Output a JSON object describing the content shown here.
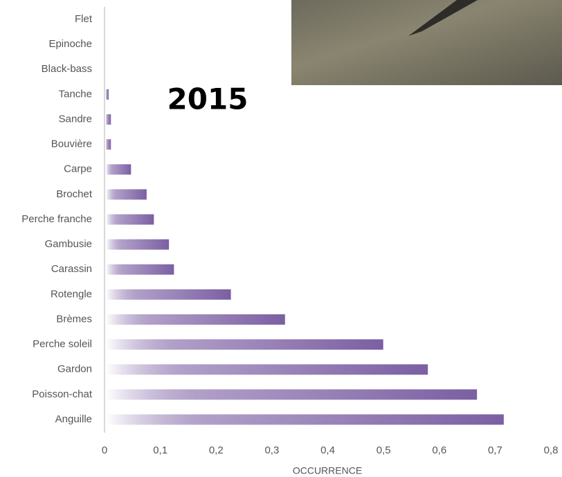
{
  "chart_data": {
    "type": "bar",
    "orientation": "horizontal",
    "annotation": "2015",
    "x_label": "OCCURRENCE",
    "categories": [
      "Flet",
      "Epinoche",
      "Black-bass",
      "Tanche",
      "Sandre",
      "Bouvière",
      "Carpe",
      "Brochet",
      "Perche franche",
      "Gambusie",
      "Carassin",
      "Rotengle",
      "Brèmes",
      "Perche soleil",
      "Gardon",
      "Poisson-chat",
      "Anguille"
    ],
    "values": [
      0,
      0,
      0,
      0.005,
      0.009,
      0.009,
      0.045,
      0.073,
      0.086,
      0.113,
      0.122,
      0.224,
      0.321,
      0.497,
      0.577,
      0.665,
      0.713
    ],
    "color": "#7b5fa3",
    "xlim": [
      0,
      0.8
    ],
    "xticks": [
      0,
      {
        "value": 0.1,
        "label": "0,1"
      },
      {
        "value": 0.2,
        "label": "0,2"
      },
      {
        "value": 0.3,
        "label": "0,3"
      },
      {
        "value": 0.4,
        "label": "0,4"
      },
      {
        "value": 0.5,
        "label": "0,5"
      },
      {
        "value": 0.6,
        "label": "0,6"
      },
      {
        "value": 0.7,
        "label": "0,7"
      },
      {
        "value": 0.8,
        "label": "0,8"
      }
    ],
    "grid": false
  }
}
